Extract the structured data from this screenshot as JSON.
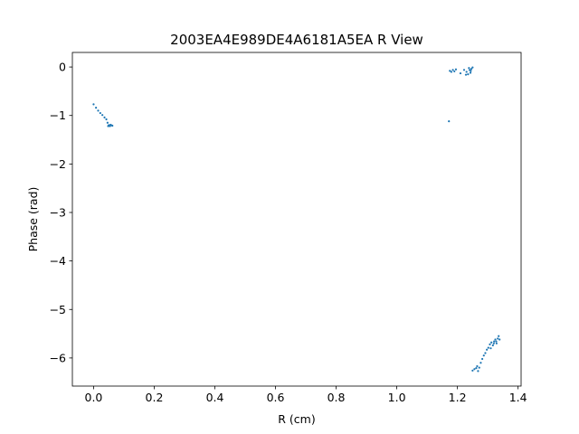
{
  "chart_data": {
    "type": "scatter",
    "title": "2003EA4E989DE4A6181A5EA R View",
    "xlabel": "R (cm)",
    "ylabel": "Phase (rad)",
    "xlim": [
      -0.07,
      1.41
    ],
    "ylim": [
      -6.58,
      0.3
    ],
    "xticks": [
      0.0,
      0.2,
      0.4,
      0.6,
      0.8,
      1.0,
      1.2,
      1.4
    ],
    "xtick_labels": [
      "0.0",
      "0.2",
      "0.4",
      "0.6",
      "0.8",
      "1.0",
      "1.2",
      "1.4"
    ],
    "yticks": [
      0,
      -1,
      -2,
      -3,
      -4,
      -5,
      -6
    ],
    "ytick_labels": [
      "0",
      "−1",
      "−2",
      "−3",
      "−4",
      "−5",
      "−6"
    ],
    "grid": false,
    "marker_color": "#1f77b4",
    "series": [
      {
        "x": [
          0.0,
          0.008,
          0.015,
          0.022,
          0.029,
          0.036,
          0.042,
          0.046,
          0.05,
          0.054,
          0.058,
          0.062,
          0.048,
          0.056,
          1.175,
          1.18,
          1.185,
          1.19,
          1.195,
          1.21,
          1.222,
          1.23,
          1.235,
          1.238,
          1.24,
          1.243,
          1.246,
          1.25,
          1.244,
          1.228,
          1.172,
          1.25,
          1.256,
          1.262,
          1.265,
          1.268,
          1.272,
          1.277,
          1.282,
          1.287,
          1.292,
          1.297,
          1.302,
          1.307,
          1.312,
          1.317,
          1.321,
          1.325,
          1.329,
          1.333,
          1.336,
          1.339,
          1.31,
          1.32,
          1.328
        ],
        "y": [
          -0.77,
          -0.84,
          -0.9,
          -0.95,
          -0.99,
          -1.04,
          -1.08,
          -1.15,
          -1.2,
          -1.22,
          -1.2,
          -1.21,
          -1.22,
          -1.19,
          -0.08,
          -0.1,
          -0.06,
          -0.09,
          -0.05,
          -0.13,
          -0.06,
          -0.1,
          -0.15,
          -0.02,
          -0.06,
          -0.12,
          -0.04,
          -0.01,
          -0.08,
          -0.16,
          -1.12,
          -6.26,
          -6.23,
          -6.21,
          -6.17,
          -6.27,
          -6.2,
          -6.1,
          -6.02,
          -5.95,
          -5.9,
          -5.83,
          -5.79,
          -5.72,
          -5.68,
          -5.74,
          -5.66,
          -5.62,
          -5.7,
          -5.6,
          -5.55,
          -5.62,
          -5.8,
          -5.7,
          -5.66
        ]
      }
    ]
  }
}
